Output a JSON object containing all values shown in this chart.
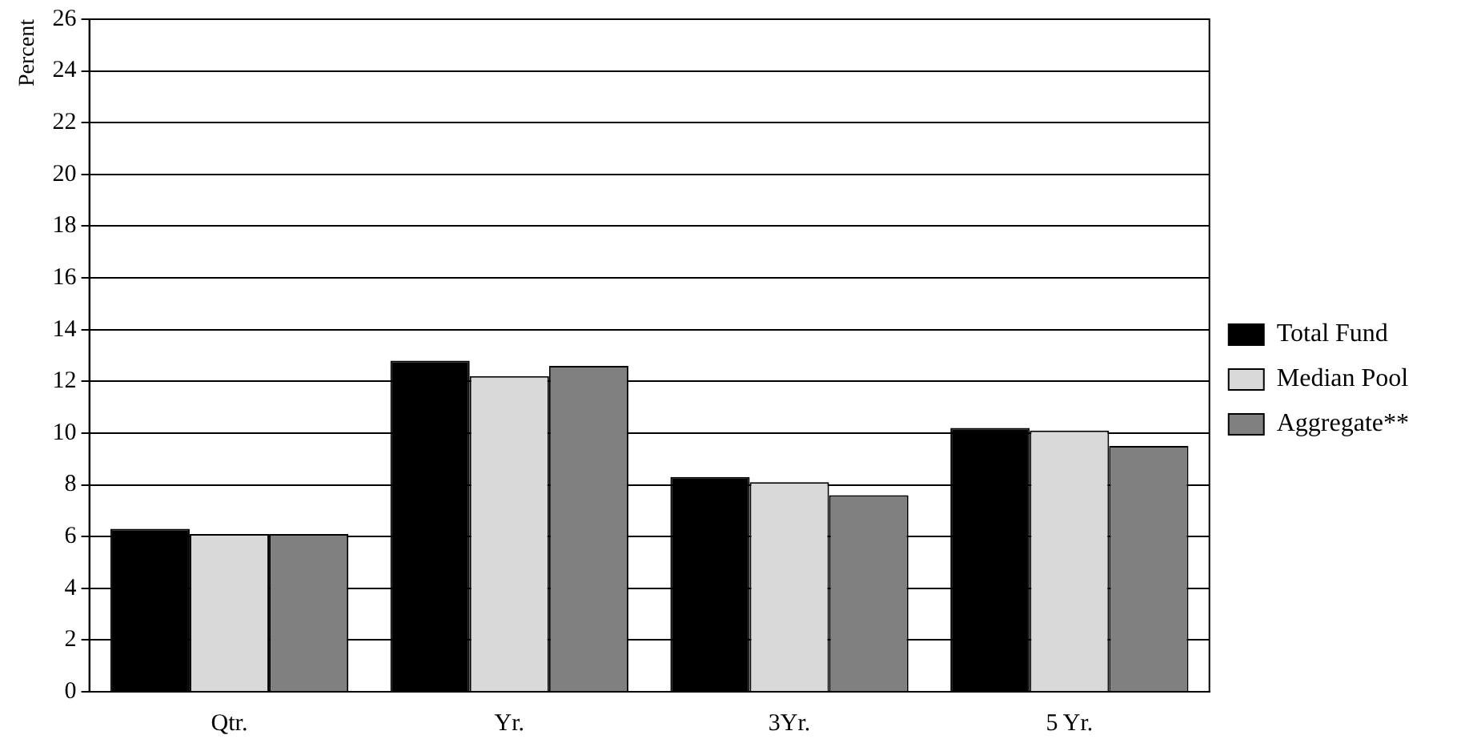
{
  "chart_data": {
    "type": "bar",
    "ylabel": "Percent",
    "categories": [
      "Qtr.",
      "Yr.",
      "3Yr.",
      "5 Yr."
    ],
    "series": [
      {
        "name": "Total Fund",
        "color": "#000000",
        "values": [
          6.3,
          12.8,
          8.3,
          10.2
        ]
      },
      {
        "name": "Median Pool",
        "color": "#d9d9d9",
        "values": [
          6.1,
          12.2,
          8.1,
          10.1
        ]
      },
      {
        "name": "Aggregate**",
        "color": "#808080",
        "values": [
          6.1,
          12.6,
          7.6,
          9.5
        ]
      }
    ],
    "ylim": [
      0,
      26
    ],
    "yticks": [
      0,
      2,
      4,
      6,
      8,
      10,
      12,
      14,
      16,
      18,
      20,
      22,
      24,
      26
    ],
    "grid": "y",
    "legend": "right"
  }
}
